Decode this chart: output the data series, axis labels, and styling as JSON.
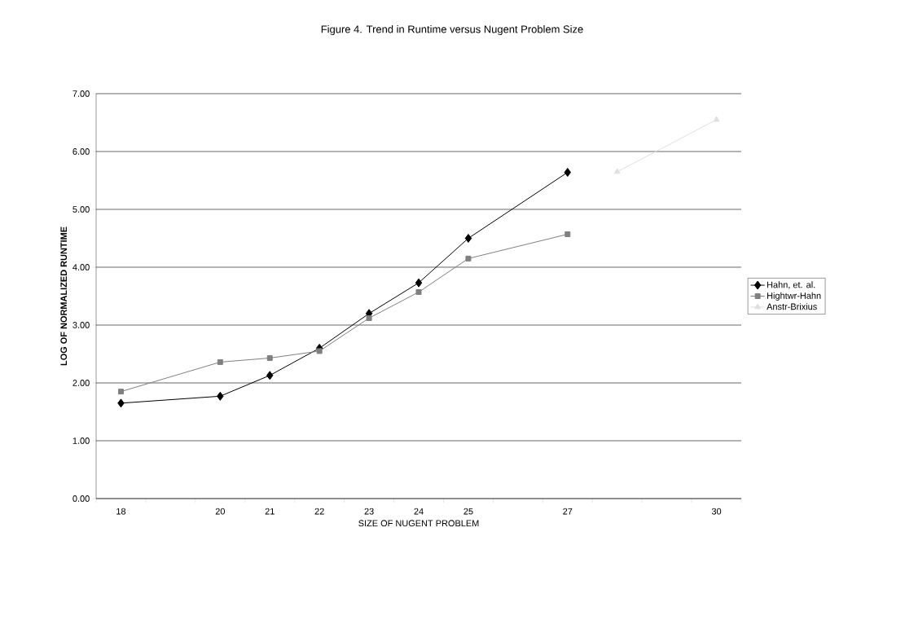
{
  "chart_data": {
    "type": "line",
    "title": "Figure 4. Trend in Runtime versus Nugent Problem Size",
    "xlabel": "SIZE OF NUGENT PROBLEM",
    "ylabel": "LOG OF NORMALIZED RUNTIME",
    "categories": [
      "18",
      null,
      "20",
      "21",
      "22",
      "23",
      "24",
      "25",
      null,
      "27",
      null,
      null,
      "30"
    ],
    "series": [
      {
        "name": "Hahn, et. al.",
        "color": "#000000",
        "marker": "diamond",
        "values": [
          1.65,
          null,
          1.77,
          2.13,
          2.6,
          3.2,
          3.73,
          4.5,
          null,
          5.64,
          null,
          null,
          null
        ]
      },
      {
        "name": "Hightwr-Hahn",
        "color": "#808080",
        "marker": "square",
        "values": [
          1.85,
          null,
          2.36,
          2.43,
          2.55,
          3.12,
          3.57,
          4.15,
          null,
          4.57,
          null,
          null,
          null
        ]
      },
      {
        "name": "Anstr-Brixius",
        "color": "#e0e0e0",
        "marker": "triangle",
        "values": [
          null,
          null,
          null,
          null,
          null,
          null,
          null,
          null,
          null,
          null,
          5.65,
          null,
          6.55
        ]
      }
    ],
    "ylim": [
      0,
      7
    ],
    "yticks": [
      {
        "value": 0,
        "label": "0.00"
      },
      {
        "value": 1,
        "label": "1.00"
      },
      {
        "value": 2,
        "label": "2.00"
      },
      {
        "value": 3,
        "label": "3.00"
      },
      {
        "value": 4,
        "label": "4.00"
      },
      {
        "value": 5,
        "label": "5.00"
      },
      {
        "value": 6,
        "label": "6.00"
      },
      {
        "value": 7,
        "label": "7.00"
      }
    ],
    "grid": "y",
    "legend": "right"
  }
}
